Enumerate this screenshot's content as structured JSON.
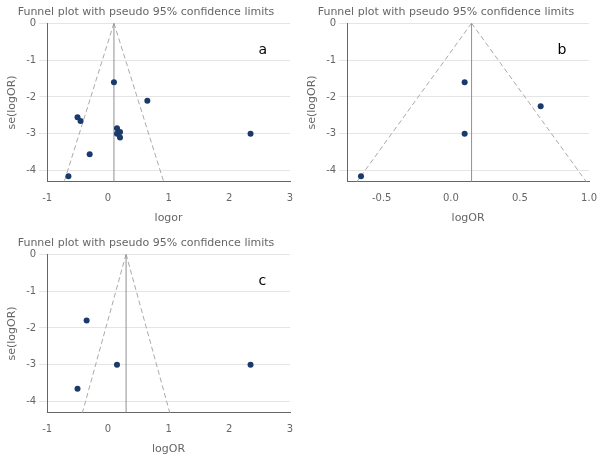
{
  "chart_data": [
    {
      "type": "scatter",
      "title": "Funnel plot with pseudo 95% confidence limits",
      "xlabel": "logor",
      "ylabel": "se(logOR)",
      "xlim": [
        -1,
        3
      ],
      "ylim": [
        -4.3,
        0
      ],
      "xticks": [
        -1,
        0,
        1,
        2,
        3
      ],
      "yticks": [
        0,
        -1,
        -2,
        -3,
        -4
      ],
      "grid": "y",
      "annotations": [
        {
          "text": "a"
        }
      ],
      "vline": {
        "x": 0.1,
        "color": "#909090"
      },
      "series": [
        {
          "type": "line",
          "line_style": "dashed",
          "color": "#aaaaaa",
          "x": [
            0.1,
            -0.72
          ],
          "y": [
            0,
            -4.3
          ]
        },
        {
          "type": "line",
          "line_style": "dashed",
          "color": "#aaaaaa",
          "x": [
            0.1,
            0.92
          ],
          "y": [
            0,
            -4.3
          ]
        },
        {
          "type": "scatter",
          "color": "#1a3a6b",
          "x": [
            -0.65,
            -0.5,
            -0.45,
            -0.3,
            0.1,
            0.15,
            0.15,
            0.2,
            0.2,
            0.65,
            2.35
          ],
          "y": [
            -4.15,
            -2.55,
            -2.65,
            -3.55,
            -1.6,
            -2.85,
            -3.0,
            -3.1,
            -2.95,
            -2.1,
            -3.0
          ]
        }
      ]
    },
    {
      "type": "scatter",
      "title": "Funnel plot with pseudo 95% confidence limits",
      "xlabel": "logOR",
      "ylabel": "se(logOR)",
      "xlim": [
        -0.75,
        1.0
      ],
      "ylim": [
        -4.3,
        0
      ],
      "xticks": [
        -0.5,
        {
          "value": 0,
          "label": "0.0"
        },
        0.5,
        {
          "value": 1.0,
          "label": "1.0"
        }
      ],
      "yticks": [
        0,
        -1,
        -2,
        -3,
        -4
      ],
      "grid": "y",
      "annotations": [
        {
          "text": "b"
        }
      ],
      "vline": {
        "x": 0.15,
        "color": "#909090"
      },
      "series": [
        {
          "type": "line",
          "line_style": "dashed",
          "color": "#aaaaaa",
          "x": [
            0.15,
            -0.68
          ],
          "y": [
            0,
            -4.3
          ]
        },
        {
          "type": "line",
          "line_style": "dashed",
          "color": "#aaaaaa",
          "x": [
            0.15,
            0.98
          ],
          "y": [
            0,
            -4.3
          ]
        },
        {
          "type": "scatter",
          "color": "#1a3a6b",
          "x": [
            -0.65,
            0.1,
            0.1,
            0.65
          ],
          "y": [
            -4.15,
            -1.6,
            -3.0,
            -2.25
          ]
        }
      ]
    },
    {
      "type": "scatter",
      "title": "Funnel plot with pseudo 95% confidence limits",
      "xlabel": "logOR",
      "ylabel": "se(logOR)",
      "xlim": [
        -1,
        3
      ],
      "ylim": [
        -4.3,
        0
      ],
      "xticks": [
        -1,
        0,
        1,
        2,
        3
      ],
      "yticks": [
        0,
        -1,
        -2,
        -3,
        -4
      ],
      "grid": "y",
      "annotations": [
        {
          "text": "c"
        }
      ],
      "vline": {
        "x": 0.3,
        "color": "#909090"
      },
      "series": [
        {
          "type": "line",
          "line_style": "dashed",
          "color": "#aaaaaa",
          "x": [
            0.3,
            -0.42
          ],
          "y": [
            0,
            -4.3
          ]
        },
        {
          "type": "line",
          "line_style": "dashed",
          "color": "#aaaaaa",
          "x": [
            0.3,
            1.02
          ],
          "y": [
            0,
            -4.3
          ]
        },
        {
          "type": "scatter",
          "color": "#1a3a6b",
          "x": [
            -0.5,
            -0.35,
            0.15,
            2.35
          ],
          "y": [
            -3.65,
            -1.8,
            -3.0,
            -3.0
          ]
        }
      ]
    }
  ]
}
